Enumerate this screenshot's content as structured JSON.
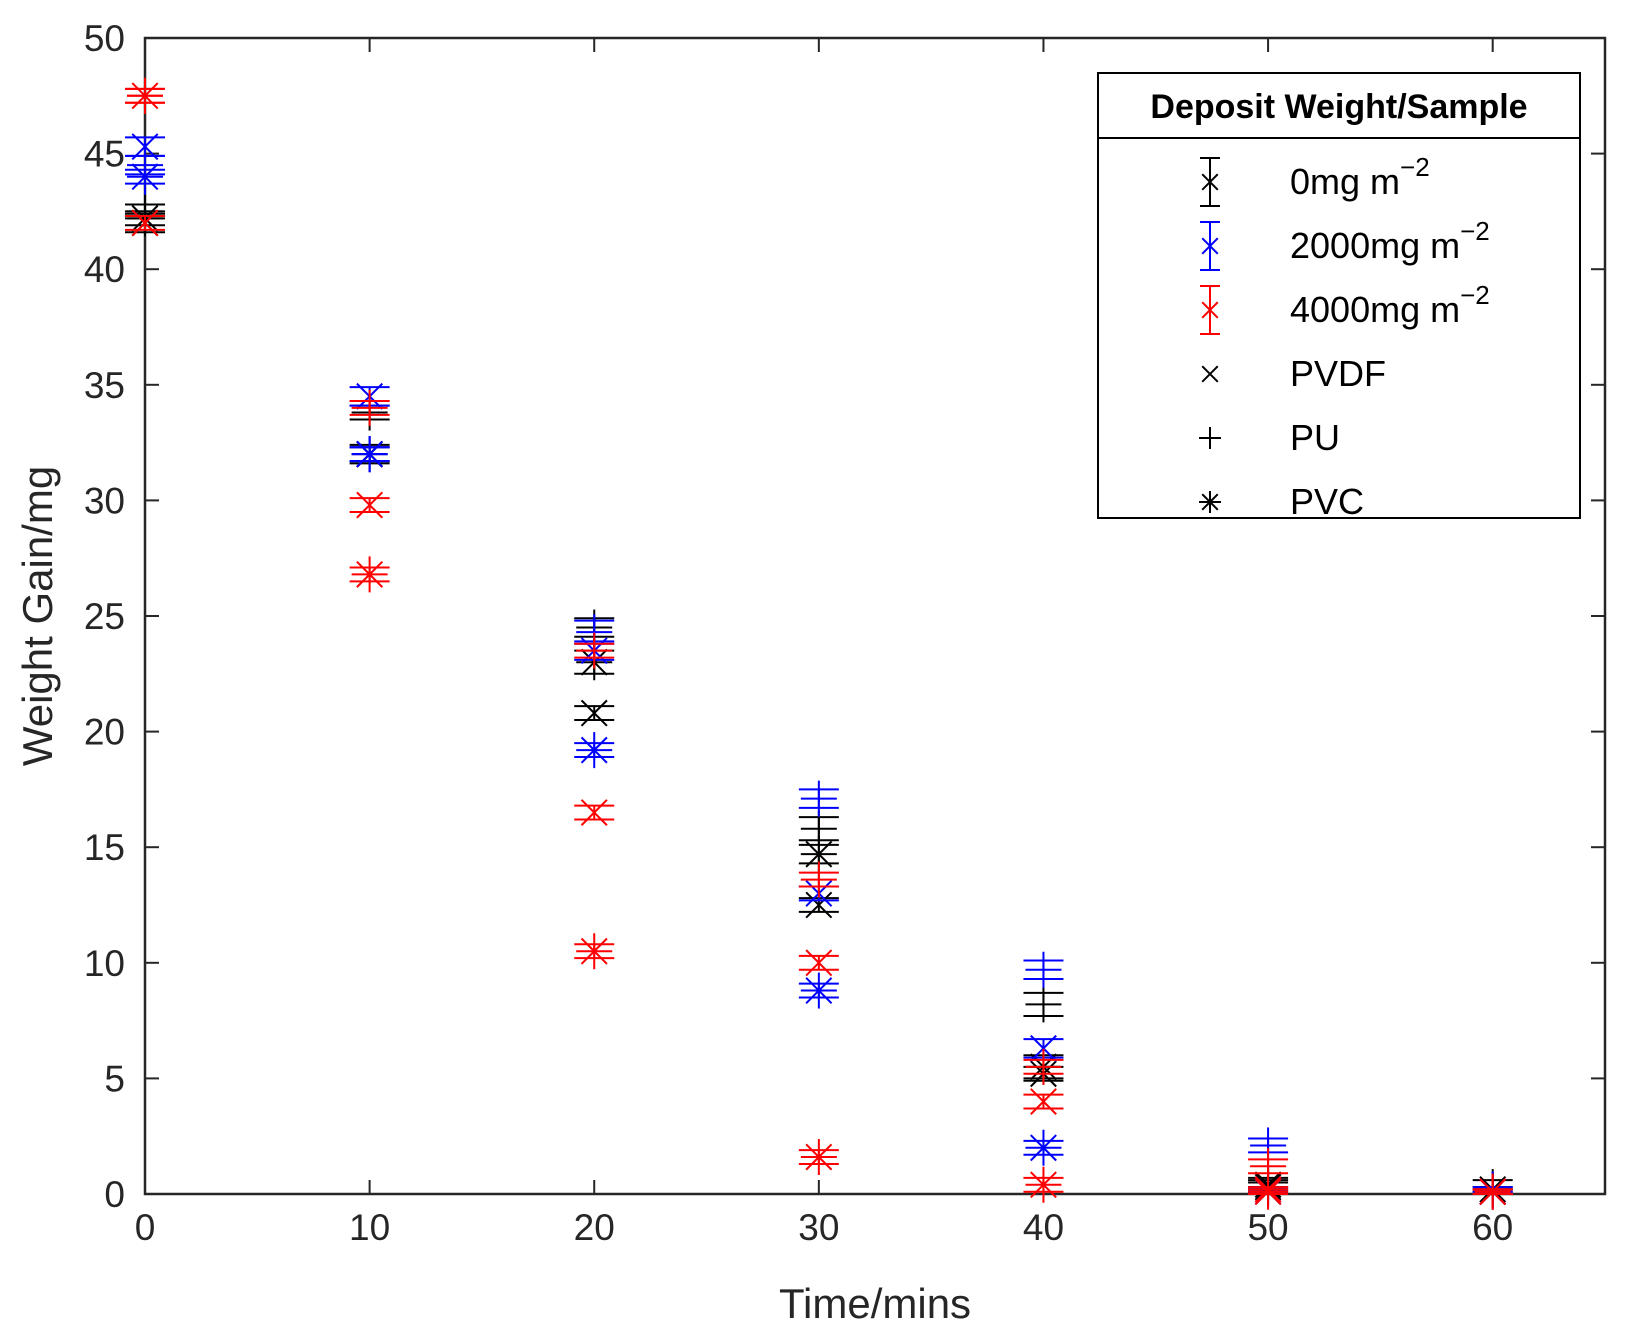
{
  "chart_data": {
    "type": "scatter",
    "xlabel": "Time/mins",
    "ylabel": "Weight Gain/mg",
    "xlim": [
      0,
      65
    ],
    "ylim": [
      0,
      50
    ],
    "xticks": [
      "0",
      "10",
      "20",
      "30",
      "40",
      "50",
      "60"
    ],
    "yticks": [
      "0",
      "5",
      "10",
      "15",
      "20",
      "25",
      "30",
      "35",
      "40",
      "45",
      "50"
    ],
    "grid": false,
    "legend": {
      "position": "top-right",
      "title": "Deposit Weight/Sample",
      "entries": [
        {
          "text": "0mg m",
          "sup": "−2",
          "marker": "errorbar-x",
          "color": "#000000"
        },
        {
          "text": "2000mg m",
          "sup": "−2",
          "marker": "errorbar-x",
          "color": "#0000ff"
        },
        {
          "text": "4000mg m",
          "sup": "−2",
          "marker": "errorbar-x",
          "color": "#ff0000"
        },
        {
          "text": "PVDF",
          "marker": "x",
          "color": "#000000"
        },
        {
          "text": "PU",
          "marker": "+",
          "color": "#000000"
        },
        {
          "text": "PVC",
          "marker": "*",
          "color": "#000000"
        }
      ]
    },
    "colors": {
      "0mg": "#000000",
      "2000mg": "#0000ff",
      "4000mg": "#ff0000"
    },
    "series": [
      {
        "name": "0mg m-2 PVDF",
        "deposit": "0mg",
        "sample": "PVDF",
        "marker": "x",
        "color": "#000000",
        "points": [
          [
            0,
            42.0,
            0.4
          ],
          [
            10,
            32.0,
            0.3
          ],
          [
            20,
            20.8,
            0.3
          ],
          [
            30,
            12.5,
            0.3
          ],
          [
            40,
            5.2,
            0.3
          ],
          [
            50,
            0.4,
            0.2
          ],
          [
            60,
            0.1,
            0.1
          ]
        ]
      },
      {
        "name": "0mg m-2 PU",
        "deposit": "0mg",
        "sample": "PU",
        "marker": "+",
        "color": "#000000",
        "points": [
          [
            0,
            42.5,
            0.3
          ],
          [
            10,
            33.8,
            0.3
          ],
          [
            20,
            24.5,
            0.4
          ],
          [
            30,
            15.8,
            0.5
          ],
          [
            40,
            8.2,
            0.5
          ],
          [
            50,
            0.5,
            0.2
          ],
          [
            60,
            0.3,
            0.3
          ]
        ]
      },
      {
        "name": "0mg m-2 PVC",
        "deposit": "0mg",
        "sample": "PVC",
        "marker": "*",
        "color": "#000000",
        "points": [
          [
            0,
            42.2,
            0.3
          ],
          [
            10,
            32.0,
            0.4
          ],
          [
            20,
            23.0,
            0.5
          ],
          [
            30,
            14.7,
            0.4
          ],
          [
            40,
            5.5,
            0.5
          ],
          [
            50,
            0.3,
            0.2
          ],
          [
            60,
            0.2,
            0.1
          ]
        ]
      },
      {
        "name": "2000mg m-2 PVDF",
        "deposit": "2000mg",
        "sample": "PVDF",
        "marker": "x",
        "color": "#0000ff",
        "points": [
          [
            0,
            45.3,
            0.4
          ],
          [
            10,
            34.5,
            0.4
          ],
          [
            20,
            23.5,
            0.4
          ],
          [
            30,
            13.0,
            0.3
          ],
          [
            40,
            6.3,
            0.4
          ],
          [
            50,
            0.1,
            0.1
          ],
          [
            60,
            0.1,
            0.1
          ]
        ]
      },
      {
        "name": "2000mg m-2 PU",
        "deposit": "2000mg",
        "sample": "PU",
        "marker": "+",
        "color": "#0000ff",
        "points": [
          [
            0,
            44.5,
            0.4
          ],
          [
            10,
            32.0,
            0.3
          ],
          [
            20,
            24.3,
            0.5
          ],
          [
            30,
            17.1,
            0.4
          ],
          [
            40,
            9.7,
            0.4
          ],
          [
            50,
            2.1,
            0.3
          ],
          [
            60,
            0.2,
            0.1
          ]
        ]
      },
      {
        "name": "2000mg m-2 PVC",
        "deposit": "2000mg",
        "sample": "PVC",
        "marker": "*",
        "color": "#0000ff",
        "points": [
          [
            0,
            44.0,
            0.3
          ],
          [
            10,
            32.0,
            0.3
          ],
          [
            20,
            19.2,
            0.3
          ],
          [
            30,
            8.8,
            0.3
          ],
          [
            40,
            2.0,
            0.3
          ],
          [
            50,
            0.2,
            0.1
          ],
          [
            60,
            0.1,
            0.1
          ]
        ]
      },
      {
        "name": "4000mg m-2 PVDF",
        "deposit": "4000mg",
        "sample": "PVDF",
        "marker": "x",
        "color": "#ff0000",
        "points": [
          [
            0,
            42.0,
            0.3
          ],
          [
            10,
            29.8,
            0.3
          ],
          [
            20,
            16.5,
            0.3
          ],
          [
            30,
            10.0,
            0.3
          ],
          [
            40,
            4.0,
            0.3
          ],
          [
            50,
            0.2,
            0.1
          ],
          [
            60,
            0.1,
            0.1
          ]
        ]
      },
      {
        "name": "4000mg m-2 PU",
        "deposit": "4000mg",
        "sample": "PU",
        "marker": "+",
        "color": "#ff0000",
        "points": [
          [
            0,
            47.5,
            0.3
          ],
          [
            10,
            34.0,
            0.3
          ],
          [
            20,
            23.5,
            0.3
          ],
          [
            30,
            13.6,
            0.3
          ],
          [
            40,
            5.5,
            0.3
          ],
          [
            50,
            1.2,
            0.3
          ],
          [
            60,
            0.1,
            0.1
          ]
        ]
      },
      {
        "name": "4000mg m-2 PVC",
        "deposit": "4000mg",
        "sample": "PVC",
        "marker": "*",
        "color": "#ff0000",
        "points": [
          [
            0,
            47.5,
            0.3
          ],
          [
            10,
            26.8,
            0.3
          ],
          [
            20,
            10.5,
            0.3
          ],
          [
            30,
            1.6,
            0.3
          ],
          [
            40,
            0.4,
            0.3
          ],
          [
            50,
            0.1,
            0.1
          ],
          [
            60,
            0.1,
            0.1
          ]
        ]
      }
    ]
  }
}
